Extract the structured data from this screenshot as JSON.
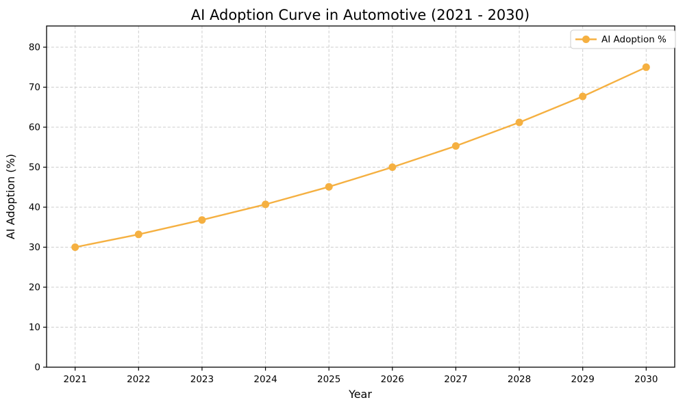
{
  "chart_data": {
    "type": "line",
    "title": "AI Adoption Curve in Automotive (2021 - 2030)",
    "xlabel": "Year",
    "ylabel": "AI Adoption (%)",
    "legend_label": "AI Adoption %",
    "legend_position": "upper right",
    "x": [
      2021,
      2022,
      2023,
      2024,
      2025,
      2026,
      2027,
      2028,
      2029,
      2030
    ],
    "values": [
      30.0,
      33.2,
      36.8,
      40.7,
      45.1,
      50.0,
      55.3,
      61.2,
      67.7,
      75.0
    ],
    "ylim": [
      0,
      85.3
    ],
    "yticks": [
      0,
      10,
      20,
      30,
      40,
      50,
      60,
      70,
      80
    ],
    "marker": "circle",
    "grid": true,
    "line_color": "#f5b041",
    "grid_color": "#cccccc",
    "spine_color": "#000000",
    "legend_border_color": "#cccccc",
    "background_color": "#ffffff"
  }
}
